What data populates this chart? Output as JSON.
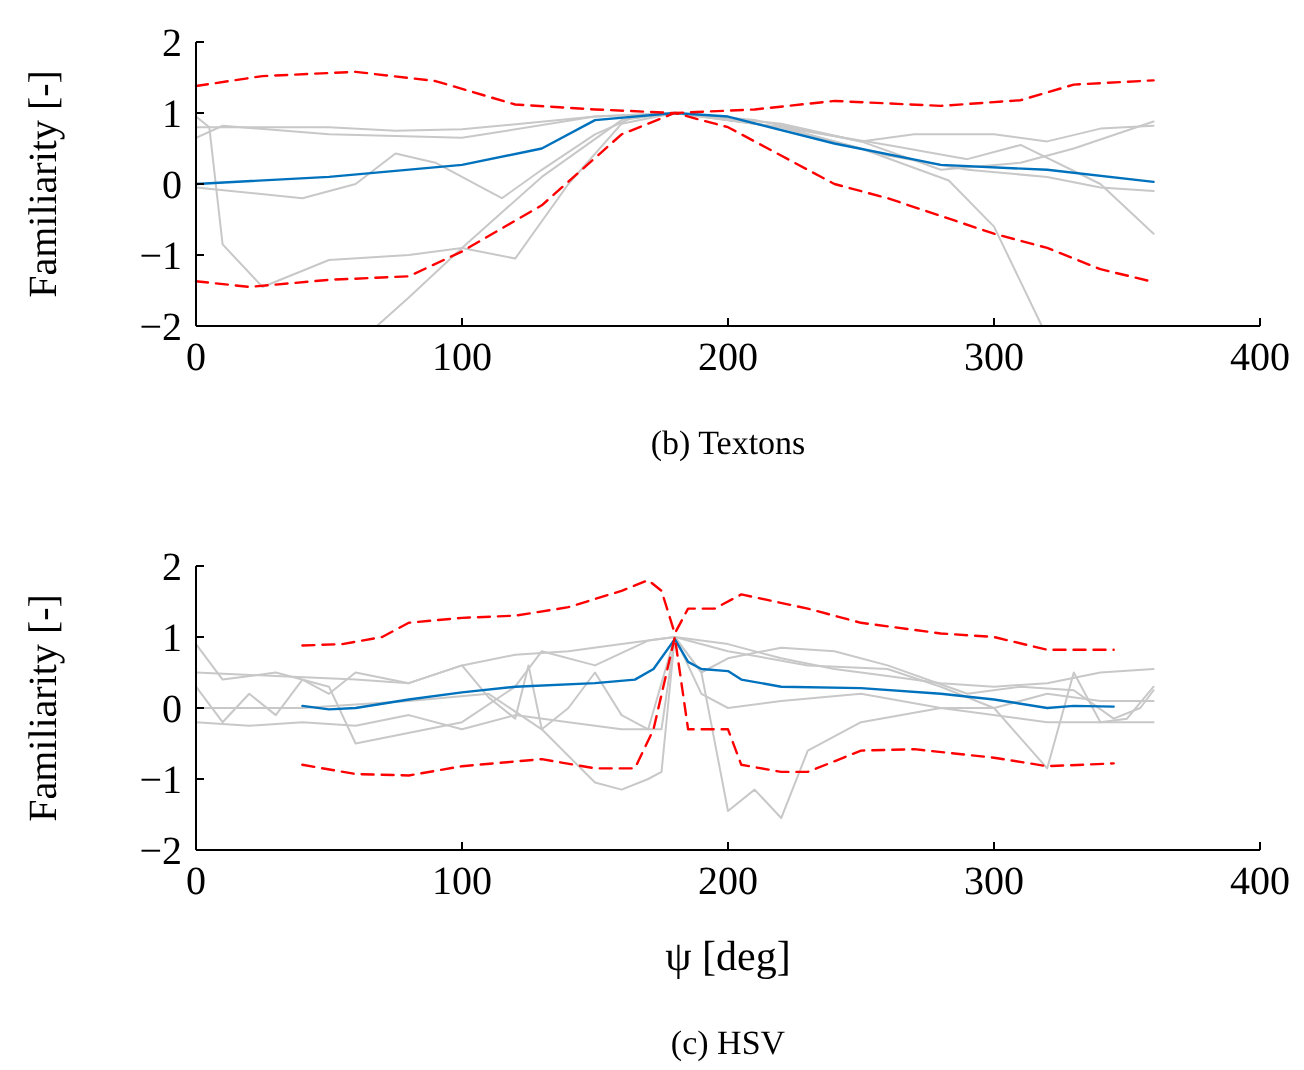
{
  "chart_data": [
    {
      "type": "line",
      "title": "(b) Textons",
      "ylabel": "Familiarity [-]",
      "xlim": [
        0,
        400
      ],
      "ylim": [
        -2,
        2
      ],
      "xticks": [
        0,
        100,
        200,
        300,
        400
      ],
      "yticks": [
        -2,
        -1,
        0,
        1,
        2
      ],
      "series": [
        {
          "color": "#c8c8c8",
          "x": [
            0,
            50,
            75,
            100,
            150,
            180,
            220,
            250,
            270,
            300,
            320,
            340,
            360
          ],
          "values": [
            0.8,
            0.8,
            0.75,
            0.77,
            0.95,
            1.0,
            0.85,
            0.6,
            0.7,
            0.7,
            0.6,
            0.78,
            0.82
          ]
        },
        {
          "color": "#c8c8c8",
          "x": [
            0,
            5,
            10,
            25,
            50,
            80,
            100,
            120,
            140,
            160,
            180,
            220,
            250,
            283,
            300,
            318
          ],
          "values": [
            0.95,
            0.8,
            -0.85,
            -1.45,
            -1.07,
            -1.0,
            -0.9,
            -1.05,
            0.0,
            0.85,
            1.0,
            0.8,
            0.5,
            0.05,
            -0.6,
            -2
          ]
        },
        {
          "color": "#c8c8c8",
          "x": [
            0,
            40,
            60,
            75,
            90,
            110,
            115,
            130,
            150,
            165,
            180,
            210,
            250,
            280,
            310,
            330,
            360
          ],
          "values": [
            -0.05,
            -0.2,
            0.0,
            0.43,
            0.3,
            -0.1,
            -0.2,
            0.2,
            0.7,
            0.95,
            1.0,
            0.9,
            0.6,
            0.2,
            0.3,
            0.5,
            0.88
          ]
        },
        {
          "color": "#c8c8c8",
          "x": [
            68,
            80,
            100,
            130,
            160,
            180,
            220,
            260,
            290,
            310,
            340,
            360
          ],
          "values": [
            -2,
            -1.6,
            -0.9,
            0.1,
            0.9,
            1.0,
            0.8,
            0.55,
            0.35,
            0.55,
            0.0,
            -0.7
          ]
        },
        {
          "color": "#c8c8c8",
          "x": [
            0,
            10,
            50,
            100,
            150,
            180,
            220,
            260,
            290,
            320,
            340,
            360
          ],
          "values": [
            0.65,
            0.82,
            0.7,
            0.65,
            0.95,
            1.0,
            0.8,
            0.4,
            0.2,
            0.1,
            -0.05,
            -0.1
          ]
        },
        {
          "color": "#0072bd",
          "x": [
            0,
            50,
            100,
            130,
            150,
            180,
            200,
            240,
            280,
            320,
            360
          ],
          "values": [
            0.0,
            0.1,
            0.27,
            0.5,
            0.9,
            1.0,
            0.95,
            0.57,
            0.27,
            0.2,
            0.03
          ]
        },
        {
          "color": "#ff0000",
          "line_style": "dashed",
          "x": [
            0,
            25,
            60,
            90,
            120,
            150,
            180,
            210,
            240,
            280,
            310,
            330,
            360
          ],
          "values": [
            1.38,
            1.52,
            1.58,
            1.45,
            1.12,
            1.05,
            1.0,
            1.05,
            1.17,
            1.1,
            1.18,
            1.4,
            1.46
          ]
        },
        {
          "color": "#ff0000",
          "line_style": "dashed",
          "x": [
            0,
            20,
            50,
            80,
            100,
            130,
            160,
            180,
            200,
            240,
            260,
            300,
            320,
            340,
            360
          ],
          "values": [
            -1.37,
            -1.45,
            -1.35,
            -1.3,
            -0.95,
            -0.3,
            0.7,
            1.0,
            0.8,
            0.0,
            -0.2,
            -0.7,
            -0.9,
            -1.2,
            -1.38
          ]
        }
      ]
    },
    {
      "type": "line",
      "title": "(c) HSV",
      "xlabel": "ψ [deg]",
      "ylabel": "Familiarity [-]",
      "xlim": [
        0,
        400
      ],
      "ylim": [
        -2,
        2
      ],
      "xticks": [
        0,
        100,
        200,
        300,
        400
      ],
      "yticks": [
        -2,
        -1,
        0,
        1,
        2
      ],
      "series": [
        {
          "color": "#c8c8c8",
          "x": [
            0,
            30,
            60,
            80,
            100,
            120,
            140,
            160,
            180,
            200,
            220,
            240,
            260,
            280,
            300,
            320,
            340,
            360
          ],
          "values": [
            0.5,
            0.45,
            0.4,
            0.35,
            0.6,
            0.75,
            0.8,
            0.9,
            1.0,
            0.9,
            0.7,
            0.55,
            0.45,
            0.35,
            0.3,
            0.35,
            0.5,
            0.55
          ]
        },
        {
          "color": "#c8c8c8",
          "x": [
            0,
            10,
            30,
            50,
            60,
            100,
            120,
            130,
            150,
            170,
            180,
            200,
            230,
            260,
            280,
            300,
            320,
            330,
            340,
            350,
            360
          ],
          "values": [
            0.9,
            0.4,
            0.5,
            0.3,
            -0.5,
            -0.2,
            0.3,
            0.8,
            0.6,
            0.95,
            1.0,
            0.8,
            0.6,
            0.55,
            0.3,
            0.0,
            -0.85,
            0.5,
            -0.2,
            -0.15,
            0.3
          ]
        },
        {
          "color": "#c8c8c8",
          "x": [
            0,
            40,
            80,
            110,
            130,
            150,
            160,
            170,
            175,
            180,
            190,
            200,
            210,
            220,
            230,
            250,
            280,
            320,
            360
          ],
          "values": [
            0.0,
            0.0,
            0.1,
            0.2,
            -0.3,
            -1.05,
            -1.15,
            -1.0,
            -0.9,
            1.0,
            0.5,
            -1.45,
            -1.15,
            -1.55,
            -0.6,
            -0.2,
            0.0,
            -0.2,
            -0.2
          ]
        },
        {
          "color": "#c8c8c8",
          "x": [
            0,
            10,
            20,
            30,
            40,
            50,
            60,
            80,
            100,
            110,
            120,
            125,
            130,
            140,
            150,
            160,
            170,
            180,
            190,
            200,
            220,
            240,
            260,
            290,
            310,
            330,
            345,
            355,
            360
          ],
          "values": [
            0.3,
            -0.2,
            0.2,
            -0.1,
            0.4,
            0.2,
            0.5,
            0.35,
            0.6,
            0.15,
            -0.15,
            0.6,
            -0.3,
            0.0,
            0.5,
            -0.1,
            -0.3,
            1.0,
            0.5,
            0.7,
            0.85,
            0.8,
            0.6,
            0.2,
            0.3,
            0.25,
            -0.15,
            0.0,
            0.25
          ]
        },
        {
          "color": "#c8c8c8",
          "x": [
            0,
            20,
            40,
            60,
            80,
            100,
            120,
            140,
            160,
            175,
            180,
            190,
            200,
            220,
            250,
            280,
            300,
            320,
            340,
            360
          ],
          "values": [
            -0.2,
            -0.25,
            -0.2,
            -0.25,
            -0.1,
            -0.3,
            -0.1,
            -0.2,
            -0.3,
            -0.3,
            1.0,
            0.2,
            0.0,
            0.1,
            0.2,
            0.0,
            0.0,
            0.2,
            0.1,
            0.1
          ]
        },
        {
          "color": "#0072bd",
          "x": [
            40,
            50,
            60,
            80,
            100,
            120,
            150,
            165,
            172,
            180,
            185,
            190,
            200,
            205,
            220,
            250,
            280,
            300,
            320,
            330,
            345
          ],
          "values": [
            0.03,
            -0.02,
            0.0,
            0.12,
            0.22,
            0.3,
            0.35,
            0.4,
            0.55,
            0.97,
            0.65,
            0.55,
            0.52,
            0.4,
            0.3,
            0.28,
            0.2,
            0.12,
            0.0,
            0.03,
            0.02
          ]
        },
        {
          "color": "#ff0000",
          "line_style": "dashed",
          "x": [
            40,
            55,
            70,
            80,
            100,
            120,
            140,
            160,
            170,
            175,
            180,
            185,
            195,
            205,
            230,
            250,
            280,
            300,
            320,
            345
          ],
          "values": [
            0.88,
            0.9,
            1.0,
            1.2,
            1.27,
            1.3,
            1.42,
            1.65,
            1.8,
            1.65,
            1.05,
            1.4,
            1.4,
            1.6,
            1.4,
            1.2,
            1.05,
            1.0,
            0.82,
            0.82
          ]
        },
        {
          "color": "#ff0000",
          "line_style": "dashed",
          "x": [
            40,
            60,
            80,
            100,
            130,
            150,
            165,
            172,
            180,
            185,
            190,
            200,
            205,
            220,
            230,
            250,
            270,
            300,
            320,
            345
          ],
          "values": [
            -0.8,
            -0.93,
            -0.95,
            -0.82,
            -0.72,
            -0.85,
            -0.85,
            -0.3,
            1.0,
            -0.3,
            -0.3,
            -0.3,
            -0.8,
            -0.9,
            -0.9,
            -0.6,
            -0.58,
            -0.7,
            -0.82,
            -0.78
          ]
        }
      ]
    }
  ]
}
